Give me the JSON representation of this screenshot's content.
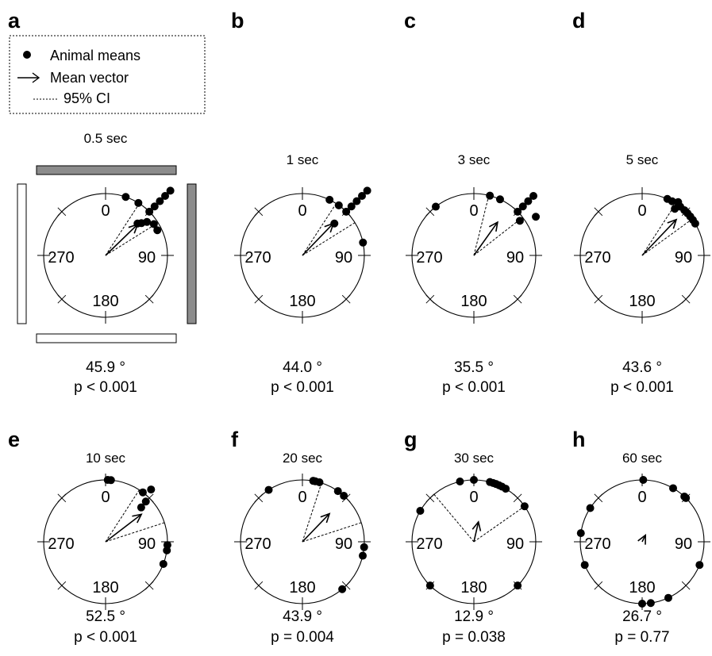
{
  "legend": {
    "items": [
      {
        "label": "Animal means",
        "symbol": "dot"
      },
      {
        "label": "Mean vector",
        "symbol": "arrow"
      },
      {
        "label": "95% CI",
        "symbol": "dashed-line"
      }
    ]
  },
  "arena": {
    "cue_cards": [
      {
        "side": "top",
        "fill": "#8c8c8c"
      },
      {
        "side": "right",
        "fill": "#8c8c8c"
      },
      {
        "side": "bottom",
        "fill": "#ffffff"
      },
      {
        "side": "left",
        "fill": "#ffffff"
      }
    ]
  },
  "chart_data": [
    {
      "type": "circular",
      "panel": "a",
      "title": "0.5 sec",
      "angle_labels": [
        "0",
        "90",
        "180",
        "270"
      ],
      "mean_angle_label": "45.9 °",
      "mean_angle": 45.9,
      "mean_vector_length": 0.72,
      "ci": [
        33,
        58
      ],
      "p_text": "p < 0.001",
      "animal_means": [
        {
          "angle": 19,
          "r": 1
        },
        {
          "angle": 32,
          "r": 1
        },
        {
          "angle": 45,
          "r": 1
        },
        {
          "angle": 45,
          "r": 1.12
        },
        {
          "angle": 45,
          "r": 1.24
        },
        {
          "angle": 45,
          "r": 1.36
        },
        {
          "angle": 45,
          "r": 1.48
        },
        {
          "angle": 45,
          "r": 0.73
        },
        {
          "angle": 48,
          "r": 0.78
        },
        {
          "angle": 51,
          "r": 0.86
        },
        {
          "angle": 57,
          "r": 0.93
        },
        {
          "angle": 64,
          "r": 0.93
        }
      ]
    },
    {
      "type": "circular",
      "panel": "b",
      "title": "1 sec",
      "angle_labels": [
        "0",
        "90",
        "180",
        "270"
      ],
      "mean_angle_label": "44.0 °",
      "mean_angle": 44.0,
      "mean_vector_length": 0.72,
      "ci": [
        33,
        58
      ],
      "p_text": "p < 0.001",
      "animal_means": [
        {
          "angle": 26,
          "r": 1
        },
        {
          "angle": 36,
          "r": 1
        },
        {
          "angle": 45,
          "r": 1
        },
        {
          "angle": 45,
          "r": 1.12
        },
        {
          "angle": 45,
          "r": 1.24
        },
        {
          "angle": 45,
          "r": 1.36
        },
        {
          "angle": 45,
          "r": 1.48
        },
        {
          "angle": 45,
          "r": 0.73
        },
        {
          "angle": 78,
          "r": 1
        }
      ]
    },
    {
      "type": "circular",
      "panel": "c",
      "title": "3 sec",
      "angle_labels": [
        "0",
        "90",
        "180",
        "270"
      ],
      "mean_angle_label": "35.5 °",
      "mean_angle": 35.5,
      "mean_vector_length": 0.66,
      "ci": [
        14,
        52
      ],
      "p_text": "p < 0.001",
      "animal_means": [
        {
          "angle": -38,
          "r": 1
        },
        {
          "angle": 15,
          "r": 1
        },
        {
          "angle": 25,
          "r": 1
        },
        {
          "angle": 45,
          "r": 1
        },
        {
          "angle": 45,
          "r": 1.12
        },
        {
          "angle": 45,
          "r": 1.24
        },
        {
          "angle": 45,
          "r": 1.36
        },
        {
          "angle": 53,
          "r": 0.93
        },
        {
          "angle": 58,
          "r": 1.18
        }
      ]
    },
    {
      "type": "circular",
      "panel": "d",
      "title": "5 sec",
      "angle_labels": [
        "0",
        "90",
        "180",
        "270"
      ],
      "mean_angle_label": "43.6 °",
      "mean_angle": 43.6,
      "mean_vector_length": 0.8,
      "ci": [
        33,
        54
      ],
      "p_text": "p < 0.001",
      "animal_means": [
        {
          "angle": 24,
          "r": 1
        },
        {
          "angle": 29,
          "r": 1
        },
        {
          "angle": 34,
          "r": 1.04
        },
        {
          "angle": 38,
          "r": 1
        },
        {
          "angle": 43,
          "r": 1
        },
        {
          "angle": 47,
          "r": 1
        },
        {
          "angle": 51,
          "r": 1
        },
        {
          "angle": 55,
          "r": 1
        },
        {
          "angle": 59,
          "r": 1
        },
        {
          "angle": 35,
          "r": 0.92
        }
      ]
    },
    {
      "type": "circular",
      "panel": "e",
      "title": "10 sec",
      "angle_labels": [
        "0",
        "90",
        "180",
        "270"
      ],
      "mean_angle_label": "52.5 °",
      "mean_angle": 52.5,
      "mean_vector_length": 0.73,
      "ci": [
        33,
        72
      ],
      "p_text": "p < 0.001",
      "animal_means": [
        {
          "angle": 2,
          "r": 1
        },
        {
          "angle": 5,
          "r": 1
        },
        {
          "angle": 37,
          "r": 1
        },
        {
          "angle": 41,
          "r": 1.12
        },
        {
          "angle": 45,
          "r": 0.92
        },
        {
          "angle": 46,
          "r": 0.8
        },
        {
          "angle": 93,
          "r": 1
        },
        {
          "angle": 98,
          "r": 1
        },
        {
          "angle": 111,
          "r": 1
        }
      ]
    },
    {
      "type": "circular",
      "panel": "f",
      "title": "20 sec",
      "angle_labels": [
        "0",
        "90",
        "180",
        "270"
      ],
      "mean_angle_label": "43.9 °",
      "mean_angle": 43.9,
      "mean_vector_length": 0.63,
      "ci": [
        18,
        72
      ],
      "p_text": "p =  0.004",
      "animal_means": [
        {
          "angle": -33,
          "r": 1
        },
        {
          "angle": 10,
          "r": 1
        },
        {
          "angle": 12,
          "r": 1
        },
        {
          "angle": 16,
          "r": 1
        },
        {
          "angle": 35,
          "r": 1
        },
        {
          "angle": 42,
          "r": 1
        },
        {
          "angle": 95,
          "r": 1
        },
        {
          "angle": 103,
          "r": 1
        },
        {
          "angle": 140,
          "r": 1
        }
      ]
    },
    {
      "type": "circular",
      "panel": "g",
      "title": "30 sec",
      "angle_labels": [
        "0",
        "90",
        "180",
        "270"
      ],
      "mean_angle_label": "12.9 °",
      "mean_angle": 12.9,
      "mean_vector_length": 0.33,
      "ci": [
        -40,
        55
      ],
      "p_text": "p =  0.038",
      "animal_means": [
        {
          "angle": -60,
          "r": 1
        },
        {
          "angle": -13,
          "r": 1
        },
        {
          "angle": 0,
          "r": 1
        },
        {
          "angle": 15,
          "r": 1
        },
        {
          "angle": 18,
          "r": 1
        },
        {
          "angle": 21,
          "r": 1
        },
        {
          "angle": 24,
          "r": 1
        },
        {
          "angle": 27,
          "r": 1
        },
        {
          "angle": 31,
          "r": 1
        },
        {
          "angle": 55,
          "r": 1
        },
        {
          "angle": 135,
          "r": 1
        },
        {
          "angle": -135,
          "r": 1
        }
      ]
    },
    {
      "type": "circular",
      "panel": "h",
      "title": "60 sec",
      "angle_labels": [
        "0",
        "90",
        "180",
        "270"
      ],
      "mean_angle_label": "26.7 °",
      "mean_angle": 26.7,
      "mean_vector_length": 0.12,
      "ci": null,
      "p_text": "p =  0.77",
      "animal_means": [
        {
          "angle": 1,
          "r": 1
        },
        {
          "angle": 30,
          "r": 1
        },
        {
          "angle": 43,
          "r": 1
        },
        {
          "angle": 45,
          "r": 1
        },
        {
          "angle": 112,
          "r": 1
        },
        {
          "angle": 155,
          "r": 1
        },
        {
          "angle": 172,
          "r": 1
        },
        {
          "angle": 180,
          "r": 1
        },
        {
          "angle": -112,
          "r": 1
        },
        {
          "angle": -82,
          "r": 1
        },
        {
          "angle": -57,
          "r": 1
        }
      ]
    }
  ]
}
